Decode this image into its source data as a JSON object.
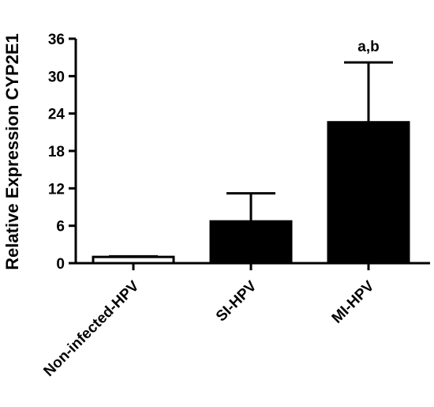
{
  "chart_data": {
    "type": "bar",
    "title": "",
    "xlabel": "",
    "ylabel": "Relative Expression CYP2E1",
    "ylim": [
      0,
      36
    ],
    "yticks": [
      0,
      6,
      12,
      18,
      24,
      30,
      36
    ],
    "categories": [
      "Non-infected-HPV",
      "SI-HPV",
      "MI-HPV"
    ],
    "values": [
      1,
      6.7,
      22.6
    ],
    "error_upper": [
      1.1,
      11.2,
      32.2
    ],
    "bar_fill": [
      "#ffffff",
      "#000000",
      "#000000"
    ],
    "annotations": [
      {
        "category": "MI-HPV",
        "text": "a,b"
      }
    ],
    "grid": false,
    "legend": "none"
  }
}
